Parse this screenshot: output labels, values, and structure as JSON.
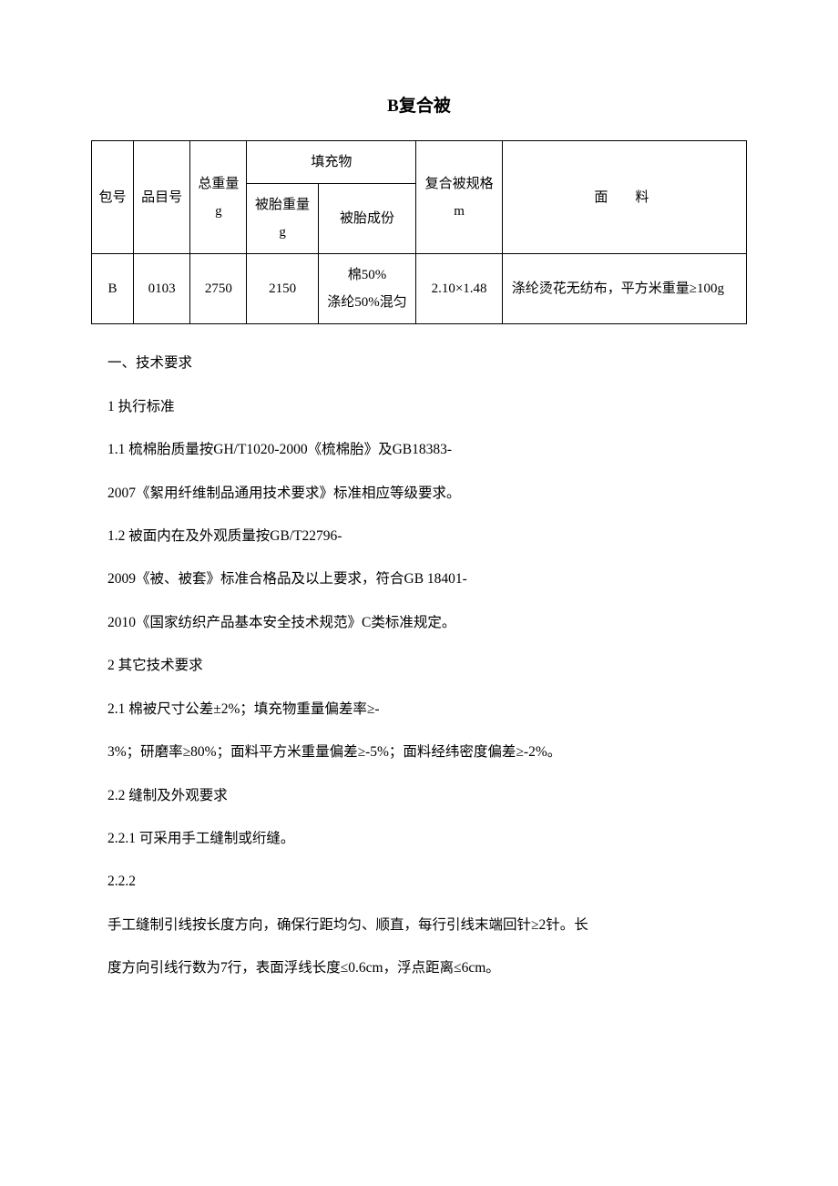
{
  "title": "B复合被",
  "table": {
    "headers": {
      "package_no": "包号",
      "item_no": "品目号",
      "total_weight": "总重量\ng",
      "filling": "填充物",
      "core_weight": "被胎重量\ng",
      "core_composition": "被胎成份",
      "spec": "复合被规格\nm",
      "material": "面料"
    },
    "row": {
      "package_no": "B",
      "item_no": "0103",
      "total_weight": "2750",
      "core_weight": "2150",
      "core_composition": "棉50%\n涤纶50%混匀",
      "spec": "2.10×1.48",
      "material": "涤纶烫花无纺布，平方米重量≥100g"
    }
  },
  "sections": {
    "h1": "一、技术要求",
    "s1": "1 执行标准",
    "s1_1a": "1.1 梳棉胎质量按GH/T1020-2000《梳棉胎》及GB18383-",
    "s1_1b": "2007《絮用纤维制品通用技术要求》标准相应等级要求。",
    "s1_2a": "1.2 被面内在及外观质量按GB/T22796-",
    "s1_2b": "2009《被、被套》标准合格品及以上要求，符合GB 18401-",
    "s1_2c": "2010《国家纺织产品基本安全技术规范》C类标准规定。",
    "s2": "2 其它技术要求",
    "s2_1a": "2.1 棉被尺寸公差±2%；填充物重量偏差率≥-",
    "s2_1b": "3%；研磨率≥80%；面料平方米重量偏差≥-5%；面料经纬密度偏差≥-2%。",
    "s2_2": "2.2 缝制及外观要求",
    "s2_2_1": "2.2.1 可采用手工缝制或绗缝。",
    "s2_2_2a": "2.2.2",
    "s2_2_2b": "手工缝制引线按长度方向，确保行距均匀、顺直，每行引线末端回针≥2针。长",
    "s2_2_2c": "度方向引线行数为7行，表面浮线长度≤0.6cm，浮点距离≤6cm。"
  }
}
